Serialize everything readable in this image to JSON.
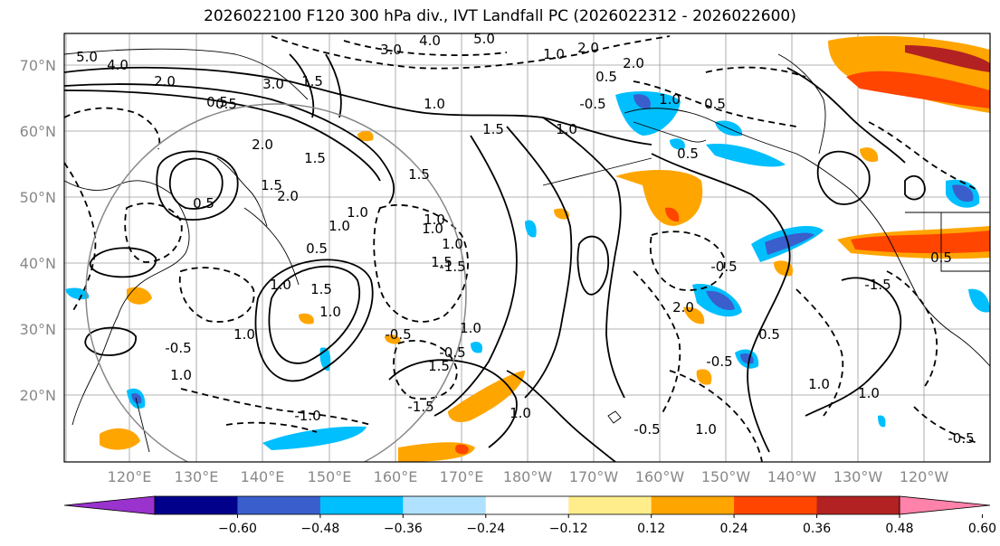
{
  "title": "2026022100 F120 300 hPa div., IVT Landfall PC (2026022312 - 2026022600)",
  "lat_labels": [
    "70°N",
    "60°N",
    "50°N",
    "40°N",
    "30°N",
    "20°N"
  ],
  "lon_labels": [
    "120°E",
    "130°E",
    "140°E",
    "150°E",
    "160°E",
    "170°E",
    "180°W",
    "170°W",
    "160°W",
    "150°W",
    "140°W",
    "130°W",
    "120°W"
  ],
  "colorbar": {
    "colors": [
      "#9a32cd",
      "#00008b",
      "#3a5fcd",
      "#00bfff",
      "#b0e2ff",
      "#ffffff",
      "#ffec8b",
      "#ffa500",
      "#ff4500",
      "#b22222",
      "#ff82ab"
    ],
    "ticks": [
      "−0.60",
      "−0.48",
      "−0.36",
      "−0.24",
      "−0.12",
      "0.12",
      "0.24",
      "0.36",
      "0.48",
      "0.60"
    ]
  },
  "contour_labels": [
    "5.0",
    "4.0",
    "2.0",
    "3.0",
    "1.5",
    "0.5",
    "1.0",
    "3.0",
    "4.0",
    "5.0",
    "1.0",
    "2.0",
    "1.5",
    "2.0",
    "1.5",
    "1.5",
    "1.0",
    "2.0",
    "1.0",
    "1.0",
    "0.5",
    "1.0",
    "1.0",
    "0.5",
    "1.5",
    "-0.5",
    "1.0",
    "1.0",
    "1.0",
    "0.5",
    "1.5",
    "1.0",
    "1.5",
    "1.0",
    "-0.5",
    "1.0",
    "1.5",
    "-0.5",
    "-0.5",
    "0.5",
    "2.0",
    "1.0",
    "0.5",
    "-1.5",
    "1.0",
    "-0.5",
    "1.0",
    "2.0",
    "0.5",
    "-0.5",
    "0.5",
    "1.0",
    "1.0",
    "-1.5",
    "-1.0",
    "-1.5",
    "-0.5",
    "0.5",
    "-0.5"
  ]
}
